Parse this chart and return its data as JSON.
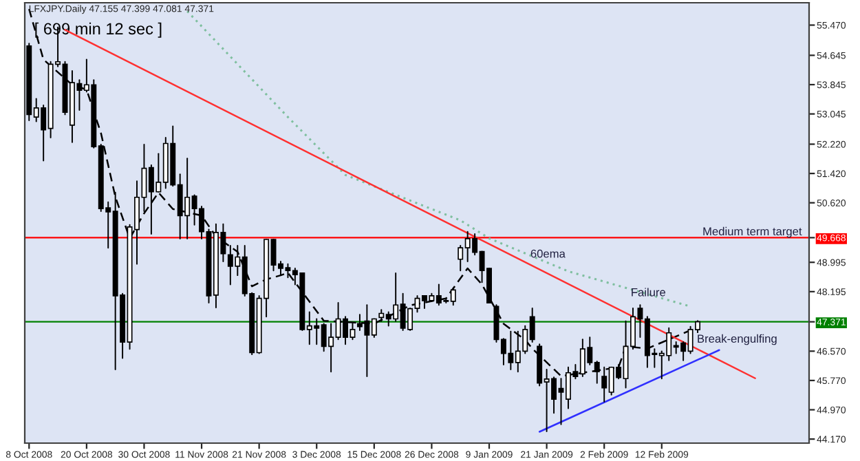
{
  "chart_data": {
    "type": "candlestick",
    "title": "LFXJPY.Daily 47.155 47.399 47.081 47.371",
    "annotations": [
      "[ 699 min 12 sec ]",
      "60ema",
      {
        "text": "Failure",
        "y": 48.15
      },
      "Break-engulfing"
    ],
    "categories": [
      "8 Oct 2008",
      null,
      null,
      null,
      null,
      null,
      null,
      null,
      "20 Oct 2008",
      null,
      null,
      null,
      null,
      null,
      null,
      null,
      "30 Oct 2008",
      null,
      null,
      null,
      null,
      null,
      null,
      null,
      "11 Nov 2008",
      null,
      null,
      null,
      null,
      null,
      null,
      null,
      "21 Nov 2008",
      null,
      null,
      null,
      null,
      null,
      null,
      null,
      "3 Dec 2008",
      null,
      null,
      null,
      null,
      null,
      null,
      null,
      "15 Dec 2008",
      null,
      null,
      null,
      null,
      null,
      null,
      null,
      "26 Dec 2008",
      null,
      null,
      null,
      null,
      null,
      null,
      null,
      "9 Jan 2009",
      null,
      null,
      null,
      null,
      null,
      null,
      null,
      "21 Jan 2009",
      null,
      null,
      null,
      null,
      null,
      null,
      null,
      "2 Feb 2009",
      null,
      null,
      null,
      null,
      null,
      null,
      null,
      "12 Feb 2009",
      null,
      null,
      null,
      null,
      null,
      null,
      null,
      null,
      null,
      null,
      null,
      null,
      null,
      null,
      null,
      null,
      null,
      null,
      null,
      null
    ],
    "ohlc": [
      [
        54.9,
        54.97,
        52.87,
        53.03
      ],
      [
        52.96,
        53.46,
        52.84,
        53.21
      ],
      [
        53.21,
        53.28,
        51.77,
        52.61
      ],
      [
        52.65,
        54.47,
        52.4,
        54.4
      ],
      [
        54.4,
        55.41,
        54.34,
        54.47
      ],
      [
        54.4,
        54.47,
        53.03,
        53.09
      ],
      [
        52.74,
        54.22,
        52.27,
        53.9
      ],
      [
        53.87,
        53.97,
        53.15,
        53.69
      ],
      [
        53.69,
        54.53,
        53.65,
        53.84
      ],
      [
        53.84,
        53.97,
        52.12,
        52.15
      ],
      [
        52.17,
        52.21,
        50.39,
        50.46
      ],
      [
        50.48,
        50.64,
        49.39,
        50.37
      ],
      [
        50.39,
        50.9,
        46.07,
        48.08
      ],
      [
        48.1,
        48.14,
        46.38,
        46.82
      ],
      [
        46.82,
        50.02,
        46.63,
        49.96
      ],
      [
        49.89,
        51.21,
        48.95,
        50.77
      ],
      [
        50.77,
        52.21,
        50.39,
        51.56
      ],
      [
        51.58,
        51.65,
        49.77,
        50.92
      ],
      [
        50.92,
        51.96,
        50.92,
        51.18
      ],
      [
        51.18,
        52.4,
        51.02,
        52.24
      ],
      [
        52.24,
        52.71,
        51.08,
        51.11
      ],
      [
        51.11,
        51.4,
        49.64,
        50.27
      ],
      [
        50.27,
        51.83,
        49.64,
        50.77
      ],
      [
        50.8,
        50.83,
        50.02,
        50.46
      ],
      [
        50.46,
        50.52,
        49.64,
        49.83
      ],
      [
        49.83,
        49.89,
        47.89,
        48.08
      ],
      [
        48.1,
        50.04,
        47.76,
        49.81
      ],
      [
        49.81,
        50.04,
        49.02,
        49.23
      ],
      [
        49.2,
        49.45,
        48.39,
        48.89
      ],
      [
        48.89,
        49.45,
        48.64,
        49.14
      ],
      [
        49.14,
        49.45,
        48.08,
        48.14
      ],
      [
        48.14,
        48.16,
        46.48,
        46.53
      ],
      [
        46.53,
        48.08,
        46.51,
        48.01
      ],
      [
        48.01,
        49.62,
        47.51,
        49.62
      ],
      [
        49.62,
        49.62,
        48.77,
        48.92
      ],
      [
        48.95,
        49.02,
        48.64,
        48.83
      ],
      [
        48.85,
        48.95,
        48.58,
        48.77
      ],
      [
        48.77,
        48.83,
        48.39,
        48.66
      ],
      [
        48.7,
        48.7,
        47.14,
        47.16
      ],
      [
        47.16,
        47.64,
        46.76,
        47.26
      ],
      [
        47.26,
        47.45,
        46.76,
        47.2
      ],
      [
        47.29,
        47.32,
        46.57,
        46.7
      ],
      [
        46.7,
        47.32,
        46.01,
        46.95
      ],
      [
        46.95,
        47.89,
        46.89,
        47.45
      ],
      [
        47.45,
        47.51,
        46.76,
        46.95
      ],
      [
        46.95,
        47.32,
        46.89,
        47.16
      ],
      [
        47.32,
        47.57,
        47.14,
        47.24
      ],
      [
        47.39,
        47.83,
        45.88,
        47.01
      ],
      [
        47.01,
        47.45,
        46.95,
        47.45
      ],
      [
        47.49,
        47.7,
        47.39,
        47.6
      ],
      [
        47.57,
        47.64,
        47.26,
        47.45
      ],
      [
        47.45,
        48.7,
        47.39,
        47.83
      ],
      [
        47.85,
        48.14,
        47.14,
        47.2
      ],
      [
        47.16,
        47.74,
        47.14,
        47.73
      ],
      [
        47.74,
        48.08,
        47.64,
        48.01
      ],
      [
        48.08,
        48.08,
        47.74,
        47.95
      ],
      [
        47.95,
        48.14,
        47.93,
        48.08
      ],
      [
        48.08,
        48.39,
        47.83,
        47.89
      ],
      [
        47.95,
        48.01,
        47.89,
        47.93
      ],
      [
        47.93,
        48.29,
        47.83,
        48.24
      ],
      [
        49.08,
        49.45,
        48.77,
        49.39
      ],
      [
        49.39,
        49.83,
        49.02,
        49.64
      ],
      [
        49.64,
        49.77,
        49.2,
        49.27
      ],
      [
        49.29,
        49.29,
        48.45,
        48.77
      ],
      [
        48.83,
        48.83,
        47.89,
        47.89
      ],
      [
        47.79,
        47.83,
        46.82,
        46.89
      ],
      [
        46.89,
        46.91,
        46.2,
        46.51
      ],
      [
        46.51,
        47.11,
        46.07,
        46.26
      ],
      [
        46.26,
        47.11,
        46.01,
        46.57
      ],
      [
        46.57,
        47.26,
        46.51,
        47.16
      ],
      [
        47.51,
        47.74,
        46.82,
        46.89
      ],
      [
        46.7,
        46.76,
        45.63,
        45.7
      ],
      [
        45.73,
        46.07,
        44.38,
        45.81
      ],
      [
        45.82,
        45.86,
        44.88,
        45.26
      ],
      [
        45.55,
        45.82,
        44.57,
        45.45
      ],
      [
        45.26,
        46.13,
        45.01,
        45.98
      ],
      [
        46.01,
        46.2,
        45.82,
        45.88
      ],
      [
        45.95,
        46.89,
        45.88,
        46.63
      ],
      [
        46.67,
        46.95,
        46.2,
        46.26
      ],
      [
        46.26,
        46.29,
        45.7,
        46.01
      ],
      [
        45.88,
        46.13,
        45.19,
        45.57
      ],
      [
        45.45,
        46.13,
        45.38,
        46.13
      ],
      [
        46.13,
        46.2,
        45.82,
        45.85
      ],
      [
        45.82,
        47.39,
        45.57,
        46.7
      ],
      [
        46.7,
        47.74,
        46.63,
        47.51
      ],
      [
        47.74,
        47.83,
        46.95,
        47.45
      ],
      [
        47.45,
        47.51,
        46.13,
        46.45
      ],
      [
        46.51,
        46.63,
        46.13,
        46.48
      ],
      [
        46.45,
        46.57,
        45.82,
        46.51
      ],
      [
        46.45,
        47.2,
        46.32,
        47.07
      ],
      [
        46.72,
        46.82,
        46.51,
        46.68
      ],
      [
        46.79,
        46.82,
        46.32,
        46.57
      ],
      [
        46.57,
        47.24,
        46.51,
        47.16
      ],
      [
        47.155,
        47.399,
        47.081,
        47.371
      ],
      null,
      null,
      null,
      null,
      null,
      null,
      null,
      null,
      null,
      null,
      null,
      null,
      null,
      null,
      null
    ],
    "colors": [
      "#000000",
      "#ffffff",
      "#000000",
      "#ffffff",
      "#ffffff",
      "#000000",
      "#ffffff",
      "#000000",
      "#ffffff",
      "#000000",
      "#000000",
      "#000000",
      "#000000",
      "#000000",
      "#ffffff",
      "#ffffff",
      "#ffffff",
      "#000000",
      "#ffffff",
      "#ffffff",
      "#000000",
      "#000000",
      "#ffffff",
      "#000000",
      "#000000",
      "#000000",
      "#ffffff",
      "#000000",
      "#000000",
      "#ffffff",
      "#000000",
      "#000000",
      "#ffffff",
      "#ffffff",
      "#000000",
      "#000000",
      "#000000",
      "#000000",
      "#000000",
      "#ffffff",
      "#000000",
      "#000000",
      "#ffffff",
      "#ffffff",
      "#000000",
      "#ffffff",
      "#000000",
      "#000000",
      "#ffffff",
      "#ffffff",
      "#000000",
      "#ffffff",
      "#000000",
      "#ffffff",
      "#ffffff",
      "#000000",
      "#ffffff",
      "#000000",
      "#000000",
      "#ffffff",
      "#ffffff",
      "#ffffff",
      "#000000",
      "#000000",
      "#000000",
      "#000000",
      "#000000",
      "#000000",
      "#ffffff",
      "#ffffff",
      "#000000",
      "#000000",
      "#ffffff",
      "#000000",
      "#000000",
      "#ffffff",
      "#000000",
      "#ffffff",
      "#000000",
      "#000000",
      "#000000",
      "#ffffff",
      "#000000",
      "#ffffff",
      "#ffffff",
      "#000000",
      "#000000",
      "#000000",
      "#ffffff",
      "#ffffff",
      "#000000",
      "#000000",
      "#ffffff",
      "#ffffff",
      null,
      null,
      null,
      null,
      null,
      null,
      null,
      null,
      null,
      null,
      null,
      null,
      null,
      null,
      null
    ],
    "series": [
      {
        "type": "line",
        "color": "#000000",
        "line_style": "dashed",
        "values": [
          55.91,
          null,
          54.53,
          null,
          null,
          null,
          53.84,
          null,
          53.71,
          null,
          52.52,
          null,
          50.78,
          null,
          49.65,
          null,
          50.33,
          null,
          50.9,
          null,
          50.45,
          null,
          null,
          null,
          50.27,
          null,
          49.7,
          null,
          null,
          49.28,
          null,
          48.34,
          null,
          48.53,
          null,
          48.64,
          48.71,
          null,
          null,
          null,
          null,
          47.4,
          null,
          null,
          null,
          null,
          null,
          null,
          47.32,
          null,
          null,
          null,
          null,
          47.82,
          null,
          null,
          null,
          null,
          48.01,
          null,
          null,
          48.83,
          null,
          48.39,
          null,
          null,
          47.32,
          null,
          null,
          46.88,
          46.64,
          null,
          null,
          null,
          45.89,
          null,
          null,
          null,
          null,
          null,
          null,
          null,
          46.13,
          46.7,
          null,
          null,
          46.64,
          null,
          null,
          null,
          null,
          null,
          47.14,
          null,
          null,
          null,
          null,
          null,
          null,
          null,
          null,
          null,
          null,
          null,
          null,
          null,
          null,
          null,
          null
        ]
      },
      {
        "type": "line",
        "color": "#7fbf9f",
        "line_style": "dotted",
        "values": [
          null,
          null,
          null,
          null,
          null,
          null,
          null,
          null,
          null,
          null,
          null,
          null,
          null,
          null,
          null,
          null,
          null,
          null,
          null,
          null,
          null,
          null,
          55.85,
          null,
          null,
          null,
          null,
          null,
          null,
          null,
          null,
          null,
          null,
          null,
          null,
          null,
          52.96,
          null,
          null,
          null,
          null,
          null,
          null,
          null,
          51.38,
          null,
          null,
          null,
          null,
          null,
          null,
          null,
          null,
          null,
          null,
          null,
          null,
          null,
          null,
          null,
          50.14,
          null,
          null,
          null,
          49.65,
          null,
          null,
          null,
          null,
          null,
          null,
          null,
          null,
          null,
          null,
          48.75,
          null,
          null,
          null,
          null,
          null,
          null,
          null,
          null,
          null,
          null,
          null,
          null,
          null,
          null,
          null,
          null,
          47.79,
          null,
          null,
          null,
          null,
          null,
          null,
          null,
          null,
          null,
          null,
          null,
          null,
          null,
          null,
          null,
          null
        ]
      },
      {
        "type": "line",
        "color": "#ff3030",
        "line_style": "solid",
        "values": [
          null,
          null,
          null,
          null,
          null,
          55.34,
          null,
          null,
          null,
          null,
          null,
          null,
          null,
          null,
          null,
          null,
          null,
          null,
          null,
          null,
          null,
          null,
          null,
          null,
          null,
          null,
          null,
          null,
          null,
          null,
          null,
          null,
          null,
          null,
          null,
          null,
          null,
          null,
          null,
          null,
          null,
          null,
          null,
          null,
          null,
          null,
          null,
          null,
          null,
          null,
          null,
          null,
          null,
          null,
          null,
          null,
          null,
          null,
          null,
          null,
          null,
          null,
          null,
          null,
          null,
          null,
          null,
          null,
          null,
          null,
          null,
          null,
          null,
          null,
          null,
          null,
          null,
          null,
          null,
          null,
          null,
          null,
          null,
          null,
          null,
          null,
          null,
          null,
          null,
          null,
          null,
          null,
          null,
          null,
          null,
          null,
          null,
          null,
          null,
          null,
          null,
          45.83,
          null,
          null,
          null,
          null,
          null,
          null,
          null
        ]
      },
      {
        "type": "line",
        "color": "#3030ff",
        "line_style": "solid",
        "values": [
          null,
          null,
          null,
          null,
          null,
          null,
          null,
          null,
          null,
          null,
          null,
          null,
          null,
          null,
          null,
          null,
          null,
          null,
          null,
          null,
          null,
          null,
          null,
          null,
          null,
          null,
          null,
          null,
          null,
          null,
          null,
          null,
          null,
          null,
          null,
          null,
          null,
          null,
          null,
          null,
          null,
          null,
          null,
          null,
          null,
          null,
          null,
          null,
          null,
          null,
          null,
          null,
          null,
          null,
          null,
          null,
          null,
          null,
          null,
          null,
          null,
          null,
          null,
          null,
          null,
          null,
          null,
          null,
          null,
          null,
          null,
          44.37,
          null,
          null,
          null,
          null,
          null,
          null,
          null,
          null,
          null,
          null,
          null,
          null,
          null,
          null,
          null,
          null,
          null,
          null,
          null,
          null,
          null,
          null,
          null,
          null,
          46.6,
          null,
          null,
          null,
          null,
          null,
          null,
          null,
          null,
          null,
          null,
          null,
          null
        ]
      }
    ],
    "ref_lines": [
      {
        "axis": "y",
        "value": 49.668,
        "label": "Medium term target",
        "color": "#ff0000"
      },
      {
        "axis": "y",
        "value": 47.371,
        "color": "#008000"
      }
    ],
    "ylim": [
      44.06,
      56.08
    ],
    "yticks": [
      {
        "value": 44.17,
        "label": "44.170"
      },
      {
        "value": 44.97,
        "label": "44.970"
      },
      {
        "value": 45.77,
        "label": "45.770"
      },
      {
        "value": 46.57,
        "label": "46.570"
      },
      {
        "value": 47.371,
        "label": "47.371"
      },
      {
        "value": 48.195,
        "label": "48.195"
      },
      {
        "value": 48.995,
        "label": "48.995"
      },
      {
        "value": 49.668,
        "label": "49.668"
      },
      {
        "value": 50.62,
        "label": "50.620"
      },
      {
        "value": 51.42,
        "label": "51.420"
      },
      {
        "value": 52.22,
        "label": "52.220"
      },
      {
        "value": 53.045,
        "label": "53.045"
      },
      {
        "value": 53.845,
        "label": "53.845"
      },
      {
        "value": 54.645,
        "label": "54.645"
      },
      {
        "value": 55.47,
        "label": "55.470"
      }
    ],
    "grid": false,
    "legend": false
  }
}
